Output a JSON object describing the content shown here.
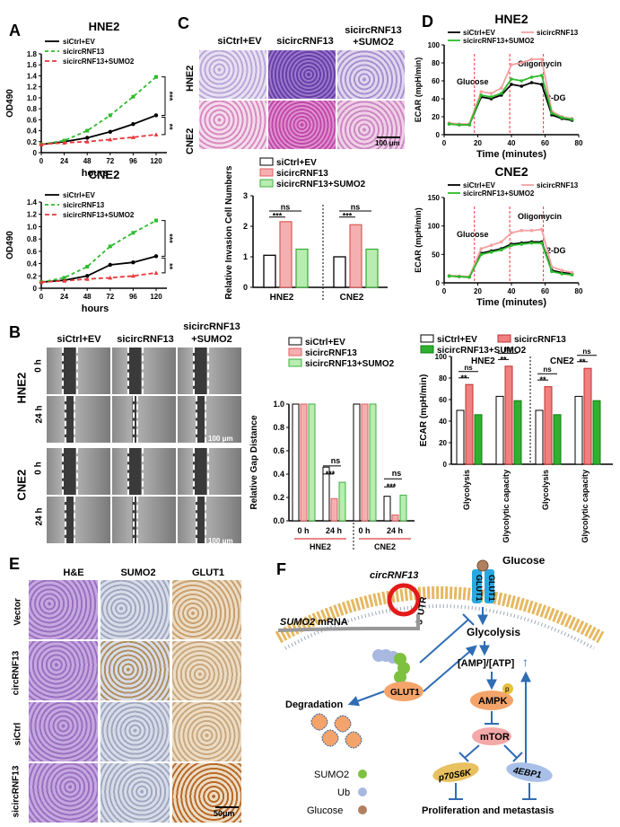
{
  "letters": {
    "A": "A",
    "B": "B",
    "C": "C",
    "D": "D",
    "E": "E",
    "F": "F"
  },
  "colors": {
    "black": "#000000",
    "green": "#2dbb2d",
    "red": "#e8383b",
    "pink": "#f4a0a0",
    "lightgreen": "#a8e6a0",
    "darkgreen": "#1ea01e",
    "purple": "#7b4fb0",
    "ihc": "#c9a47c"
  },
  "panelA": {
    "chart_data": [
      {
        "type": "line",
        "title": "HNE2",
        "xlabel": "hours",
        "ylabel": "OD490",
        "x": [
          0,
          24,
          48,
          72,
          96,
          120
        ],
        "xlim": [
          0,
          120
        ],
        "ylim": [
          0,
          1.8
        ],
        "yticks": [
          "0",
          "0.2",
          "0.4",
          "0.6",
          "0.8",
          "1.0",
          "1.2",
          "1.4",
          "1.6",
          "1.8"
        ],
        "xticks": [
          "0",
          "24",
          "48",
          "72",
          "96",
          "120"
        ],
        "series": [
          {
            "name": "siCtrl+EV",
            "values": [
              0.15,
              0.2,
              0.27,
              0.38,
              0.52,
              0.68
            ]
          },
          {
            "name": "sicircRNF13",
            "values": [
              0.15,
              0.22,
              0.4,
              0.68,
              1.02,
              1.38
            ]
          },
          {
            "name": "sicircRNF13+SUMO2",
            "values": [
              0.15,
              0.18,
              0.2,
              0.24,
              0.28,
              0.33
            ]
          }
        ],
        "sig": [
          "***",
          "**"
        ]
      },
      {
        "type": "line",
        "title": "CNE2",
        "xlabel": "hours",
        "ylabel": "OD490",
        "x": [
          0,
          24,
          48,
          72,
          96,
          120
        ],
        "xlim": [
          0,
          120
        ],
        "ylim": [
          0,
          1.4
        ],
        "yticks": [
          "0",
          "0.2",
          "0.4",
          "0.6",
          "0.8",
          "1.0",
          "1.2",
          "1.4"
        ],
        "xticks": [
          "0",
          "24",
          "48",
          "72",
          "96",
          "120"
        ],
        "series": [
          {
            "name": "siCtrl+EV",
            "values": [
              0.1,
              0.13,
              0.2,
              0.38,
              0.42,
              0.52
            ]
          },
          {
            "name": "sicircRNF13",
            "values": [
              0.1,
              0.17,
              0.35,
              0.68,
              0.9,
              1.1
            ]
          },
          {
            "name": "sicircRNF13+SUMO2",
            "values": [
              0.1,
              0.12,
              0.15,
              0.17,
              0.2,
              0.25
            ]
          }
        ],
        "sig": [
          "***",
          "**"
        ]
      }
    ]
  },
  "panelB": {
    "cols": [
      "siCtrl+EV",
      "sicircRNF13",
      "sicircRNF13\n+SUMO2"
    ],
    "col3a": "sicircRNF13",
    "col3b": "+SUMO2",
    "rows_hne2": [
      "0 h",
      "24 h"
    ],
    "rows_cne2": [
      "0 h",
      "24 h"
    ],
    "cellA": "HNE2",
    "cellB": "CNE2",
    "scale": "100 μm",
    "chart_data": {
      "type": "bar",
      "ylabel": "Relative Gap Distance",
      "ylim": [
        0,
        1.0
      ],
      "yticks": [
        "0.0",
        "0.2",
        "0.4",
        "0.6",
        "0.8",
        "1.0"
      ],
      "groups": [
        "0 h",
        "24 h",
        "0 h",
        "24 h"
      ],
      "cells": [
        "HNE2",
        "CNE2"
      ],
      "series": [
        {
          "name": "siCtrl+EV",
          "values": [
            1.0,
            0.46,
            1.0,
            0.21
          ]
        },
        {
          "name": "sicircRNF13",
          "values": [
            1.0,
            0.19,
            1.0,
            0.05
          ]
        },
        {
          "name": "sicircRNF13+SUMO2",
          "values": [
            1.0,
            0.33,
            1.0,
            0.22
          ]
        }
      ],
      "sig": [
        "ns",
        "***",
        "ns",
        "***"
      ]
    }
  },
  "panelC": {
    "cols": [
      "siCtrl+EV",
      "sicircRNF13",
      "sicircRNF13",
      "+SUMO2"
    ],
    "rows": [
      "HNE2",
      "CNE2"
    ],
    "scale": "100 μm",
    "chart_data": {
      "type": "bar",
      "ylabel": "Relative Invasion Cell Numbers",
      "ylim": [
        0,
        3
      ],
      "yticks": [
        "0",
        "1",
        "2",
        "3"
      ],
      "categories": [
        "HNE2",
        "CNE2"
      ],
      "series": [
        {
          "name": "siCtrl+EV",
          "values": [
            1.05,
            1.0
          ]
        },
        {
          "name": "sicircRNF13",
          "values": [
            2.15,
            2.05
          ]
        },
        {
          "name": "sicircRNF13+SUMO2",
          "values": [
            1.25,
            1.25
          ]
        }
      ],
      "sig": [
        "ns",
        "***",
        "ns",
        "***"
      ]
    }
  },
  "panelD": {
    "chart_data": [
      {
        "type": "line",
        "title": "HNE2",
        "xlabel": "Time (minutes)",
        "ylabel": "ECAR (mpH/min)",
        "xlim": [
          0,
          80
        ],
        "ylim": [
          0,
          100
        ],
        "xticks": [
          "0",
          "20",
          "40",
          "60",
          "80"
        ],
        "yticks": [
          "0",
          "20",
          "40",
          "60",
          "80",
          "100"
        ],
        "annotations": [
          "Glucose",
          "Oligomycin",
          "2-DG"
        ],
        "x": [
          3,
          9,
          15,
          22,
          28,
          34,
          40,
          46,
          52,
          58,
          64,
          70,
          76
        ],
        "series": [
          {
            "name": "siCtrl+EV",
            "values": [
              12,
              11,
              11,
              42,
              40,
              44,
              56,
              54,
              58,
              56,
              22,
              18,
              16
            ]
          },
          {
            "name": "sicircRNF13",
            "values": [
              13,
              12,
              12,
              48,
              46,
              52,
              78,
              80,
              84,
              84,
              26,
              20,
              18
            ]
          },
          {
            "name": "sicircRNF13+SUMO2",
            "values": [
              12,
              11,
              11,
              44,
              42,
              46,
              62,
              60,
              64,
              66,
              24,
              19,
              17
            ]
          }
        ]
      },
      {
        "type": "line",
        "title": "CNE2",
        "xlabel": "Time (minutes)",
        "ylabel": "ECAR (mpH/min)",
        "xlim": [
          0,
          80
        ],
        "ylim": [
          0,
          150
        ],
        "xticks": [
          "0",
          "20",
          "40",
          "60",
          "80"
        ],
        "yticks": [
          "0",
          "50",
          "100",
          "150"
        ],
        "annotations": [
          "Glucose",
          "Oligomycin",
          "2-DG"
        ],
        "x": [
          3,
          9,
          15,
          22,
          28,
          34,
          40,
          46,
          52,
          58,
          64,
          70,
          76
        ],
        "series": [
          {
            "name": "siCtrl+EV",
            "values": [
              12,
              11,
              10,
              52,
              56,
              60,
              68,
              70,
              72,
              72,
              22,
              18,
              16
            ]
          },
          {
            "name": "sicircRNF13",
            "values": [
              13,
              12,
              11,
              60,
              66,
              72,
              88,
              92,
              92,
              94,
              28,
              22,
              18
            ]
          },
          {
            "name": "sicircRNF13+SUMO2",
            "values": [
              12,
              11,
              10,
              50,
              54,
              58,
              66,
              68,
              70,
              70,
              20,
              16,
              14
            ]
          }
        ]
      },
      {
        "type": "bar",
        "ylabel": "ECAR (mpH/min)",
        "ylim": [
          0,
          100
        ],
        "yticks": [
          "0",
          "20",
          "40",
          "60",
          "80",
          "100"
        ],
        "cells": [
          "HNE2",
          "CNE2"
        ],
        "categories": [
          "Glycolysis",
          "Glycolytic capacity",
          "Glycolysis",
          "Glycolytic capacity"
        ],
        "series": [
          {
            "name": "siCtrl+EV",
            "values": [
              50,
              63,
              50,
              63
            ]
          },
          {
            "name": "sicircRNF13",
            "values": [
              74,
              91,
              72,
              89
            ]
          },
          {
            "name": "sicircRNF13+SUMO2",
            "values": [
              46,
              59,
              46,
              59
            ]
          }
        ],
        "sig": [
          "ns",
          "**",
          "ns",
          "**",
          "ns",
          "**",
          "ns",
          "**"
        ]
      }
    ]
  },
  "panelE": {
    "cols": [
      "H&E",
      "SUMO2",
      "GLUT1"
    ],
    "rows": [
      "Vector",
      "circRNF13",
      "siCtrl",
      "sicircRNF13"
    ],
    "scale": "50μm"
  },
  "panelF": {
    "glucose": "Glucose",
    "glut1": "GLUT1",
    "circ": "circRNF13",
    "utr": "3' UTR",
    "mrna_gene": "SUMO2",
    "mrna_word": " mRNA",
    "glycolysis": "Glycolysis",
    "ampatp": "[AMP]/[ATP]",
    "ampk": "AMPK",
    "p": "p",
    "mtor": "mTOR",
    "p70": "p70S6K",
    "ebp": "4EBP1",
    "prolif": "Proliferation and metastasis",
    "degradation": "Degradation",
    "legend": [
      "SUMO2",
      "Ub",
      "Glucose"
    ]
  }
}
